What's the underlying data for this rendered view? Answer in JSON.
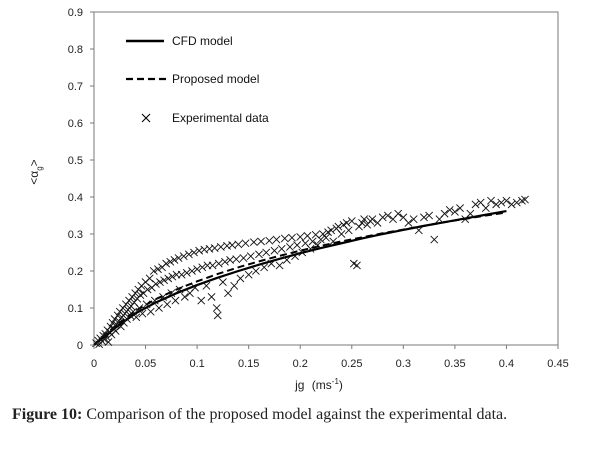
{
  "caption": {
    "label": "Figure 10:",
    "text": "Comparison of the proposed model against the experimental data."
  },
  "chart_data": {
    "type": "scatter",
    "xlabel_main": "jg",
    "xlabel_unit_pre": "(ms",
    "xlabel_unit_sup": "-1",
    "xlabel_unit_post": ")",
    "ylabel_main": "<α",
    "ylabel_sub": "g",
    "ylabel_close": ">",
    "xlim": [
      0,
      0.45
    ],
    "ylim": [
      0,
      0.9
    ],
    "xticks": [
      "0",
      "0.05",
      "0.1",
      "0.15",
      "0.2",
      "0.25",
      "0.3",
      "0.35",
      "0.4",
      "0.45"
    ],
    "yticks": [
      "0",
      "0.1",
      "0.2",
      "0.3",
      "0.4",
      "0.5",
      "0.6",
      "0.7",
      "0.8",
      "0.9"
    ],
    "legend": [
      "CFD model",
      "Proposed model",
      "Experimental data"
    ],
    "legend_position": "top-left",
    "grid": false,
    "series": [
      {
        "name": "CFD model",
        "style": "solid",
        "x": [
          0,
          0.02,
          0.04,
          0.06,
          0.08,
          0.1,
          0.12,
          0.14,
          0.16,
          0.18,
          0.2,
          0.22,
          0.24,
          0.26,
          0.28,
          0.3,
          0.32,
          0.34,
          0.36,
          0.38,
          0.4
        ],
        "y": [
          0,
          0.045,
          0.085,
          0.115,
          0.14,
          0.162,
          0.182,
          0.2,
          0.217,
          0.233,
          0.248,
          0.262,
          0.275,
          0.288,
          0.3,
          0.311,
          0.322,
          0.332,
          0.342,
          0.352,
          0.362
        ]
      },
      {
        "name": "Proposed model",
        "style": "dashed",
        "x": [
          0,
          0.02,
          0.04,
          0.06,
          0.08,
          0.1,
          0.12,
          0.14,
          0.16,
          0.18,
          0.2,
          0.22,
          0.24,
          0.26,
          0.28,
          0.3,
          0.32,
          0.34,
          0.36,
          0.38,
          0.4
        ],
        "y": [
          0,
          0.05,
          0.092,
          0.124,
          0.15,
          0.172,
          0.192,
          0.21,
          0.226,
          0.241,
          0.255,
          0.268,
          0.28,
          0.291,
          0.302,
          0.312,
          0.322,
          0.332,
          0.341,
          0.35,
          0.358
        ]
      },
      {
        "name": "Experimental data",
        "style": "markers",
        "points": [
          [
            0.002,
            0.005
          ],
          [
            0.004,
            0.012
          ],
          [
            0.005,
            0.002
          ],
          [
            0.006,
            0.018
          ],
          [
            0.008,
            0.01
          ],
          [
            0.009,
            0.025
          ],
          [
            0.01,
            0.015
          ],
          [
            0.011,
            0.03
          ],
          [
            0.012,
            0.022
          ],
          [
            0.013,
            0.04
          ],
          [
            0.014,
            0.008
          ],
          [
            0.015,
            0.035
          ],
          [
            0.016,
            0.05
          ],
          [
            0.017,
            0.028
          ],
          [
            0.018,
            0.06
          ],
          [
            0.019,
            0.045
          ],
          [
            0.02,
            0.07
          ],
          [
            0.021,
            0.038
          ],
          [
            0.022,
            0.055
          ],
          [
            0.023,
            0.08
          ],
          [
            0.024,
            0.065
          ],
          [
            0.025,
            0.09
          ],
          [
            0.026,
            0.05
          ],
          [
            0.027,
            0.075
          ],
          [
            0.028,
            0.1
          ],
          [
            0.029,
            0.06
          ],
          [
            0.03,
            0.085
          ],
          [
            0.031,
            0.11
          ],
          [
            0.032,
            0.07
          ],
          [
            0.033,
            0.095
          ],
          [
            0.034,
            0.12
          ],
          [
            0.035,
            0.08
          ],
          [
            0.036,
            0.105
          ],
          [
            0.037,
            0.13
          ],
          [
            0.038,
            0.09
          ],
          [
            0.039,
            0.115
          ],
          [
            0.04,
            0.14
          ],
          [
            0.041,
            0.075
          ],
          [
            0.042,
            0.125
          ],
          [
            0.043,
            0.15
          ],
          [
            0.044,
            0.1
          ],
          [
            0.045,
            0.135
          ],
          [
            0.046,
            0.16
          ],
          [
            0.047,
            0.085
          ],
          [
            0.048,
            0.14
          ],
          [
            0.05,
            0.17
          ],
          [
            0.051,
            0.11
          ],
          [
            0.052,
            0.15
          ],
          [
            0.054,
            0.18
          ],
          [
            0.055,
            0.09
          ],
          [
            0.056,
            0.155
          ],
          [
            0.058,
            0.2
          ],
          [
            0.059,
            0.12
          ],
          [
            0.06,
            0.165
          ],
          [
            0.062,
            0.205
          ],
          [
            0.063,
            0.1
          ],
          [
            0.064,
            0.17
          ],
          [
            0.066,
            0.21
          ],
          [
            0.067,
            0.13
          ],
          [
            0.068,
            0.175
          ],
          [
            0.07,
            0.22
          ],
          [
            0.071,
            0.11
          ],
          [
            0.072,
            0.18
          ],
          [
            0.074,
            0.225
          ],
          [
            0.075,
            0.14
          ],
          [
            0.076,
            0.185
          ],
          [
            0.078,
            0.23
          ],
          [
            0.079,
            0.12
          ],
          [
            0.08,
            0.19
          ],
          [
            0.082,
            0.235
          ],
          [
            0.083,
            0.15
          ],
          [
            0.085,
            0.19
          ],
          [
            0.087,
            0.24
          ],
          [
            0.088,
            0.13
          ],
          [
            0.09,
            0.195
          ],
          [
            0.092,
            0.245
          ],
          [
            0.093,
            0.14
          ],
          [
            0.095,
            0.2
          ],
          [
            0.097,
            0.25
          ],
          [
            0.098,
            0.155
          ],
          [
            0.1,
            0.205
          ],
          [
            0.102,
            0.255
          ],
          [
            0.104,
            0.12
          ],
          [
            0.105,
            0.21
          ],
          [
            0.107,
            0.258
          ],
          [
            0.109,
            0.16
          ],
          [
            0.11,
            0.215
          ],
          [
            0.112,
            0.26
          ],
          [
            0.114,
            0.13
          ],
          [
            0.115,
            0.215
          ],
          [
            0.117,
            0.262
          ],
          [
            0.119,
            0.1
          ],
          [
            0.12,
            0.08
          ],
          [
            0.121,
            0.22
          ],
          [
            0.123,
            0.265
          ],
          [
            0.125,
            0.17
          ],
          [
            0.127,
            0.225
          ],
          [
            0.129,
            0.268
          ],
          [
            0.13,
            0.14
          ],
          [
            0.132,
            0.23
          ],
          [
            0.134,
            0.27
          ],
          [
            0.136,
            0.16
          ],
          [
            0.138,
            0.232
          ],
          [
            0.14,
            0.272
          ],
          [
            0.142,
            0.18
          ],
          [
            0.145,
            0.235
          ],
          [
            0.147,
            0.275
          ],
          [
            0.15,
            0.19
          ],
          [
            0.152,
            0.24
          ],
          [
            0.155,
            0.278
          ],
          [
            0.157,
            0.2
          ],
          [
            0.16,
            0.245
          ],
          [
            0.162,
            0.28
          ],
          [
            0.165,
            0.21
          ],
          [
            0.167,
            0.25
          ],
          [
            0.17,
            0.282
          ],
          [
            0.172,
            0.22
          ],
          [
            0.175,
            0.255
          ],
          [
            0.177,
            0.285
          ],
          [
            0.18,
            0.215
          ],
          [
            0.182,
            0.26
          ],
          [
            0.185,
            0.288
          ],
          [
            0.187,
            0.23
          ],
          [
            0.19,
            0.265
          ],
          [
            0.192,
            0.29
          ],
          [
            0.195,
            0.24
          ],
          [
            0.197,
            0.27
          ],
          [
            0.2,
            0.292
          ],
          [
            0.202,
            0.25
          ],
          [
            0.205,
            0.275
          ],
          [
            0.207,
            0.295
          ],
          [
            0.21,
            0.26
          ],
          [
            0.212,
            0.28
          ],
          [
            0.215,
            0.298
          ],
          [
            0.217,
            0.27
          ],
          [
            0.22,
            0.285
          ],
          [
            0.222,
            0.3
          ],
          [
            0.225,
            0.29
          ],
          [
            0.227,
            0.305
          ],
          [
            0.23,
            0.31
          ],
          [
            0.232,
            0.28
          ],
          [
            0.235,
            0.315
          ],
          [
            0.237,
            0.32
          ],
          [
            0.24,
            0.3
          ],
          [
            0.242,
            0.325
          ],
          [
            0.245,
            0.33
          ],
          [
            0.247,
            0.31
          ],
          [
            0.25,
            0.335
          ],
          [
            0.252,
            0.22
          ],
          [
            0.255,
            0.215
          ],
          [
            0.257,
            0.32
          ],
          [
            0.26,
            0.33
          ],
          [
            0.262,
            0.34
          ],
          [
            0.265,
            0.325
          ],
          [
            0.268,
            0.335
          ],
          [
            0.27,
            0.34
          ],
          [
            0.275,
            0.33
          ],
          [
            0.28,
            0.345
          ],
          [
            0.285,
            0.35
          ],
          [
            0.29,
            0.34
          ],
          [
            0.295,
            0.355
          ],
          [
            0.3,
            0.345
          ],
          [
            0.305,
            0.33
          ],
          [
            0.31,
            0.34
          ],
          [
            0.315,
            0.31
          ],
          [
            0.32,
            0.345
          ],
          [
            0.325,
            0.35
          ],
          [
            0.33,
            0.285
          ],
          [
            0.335,
            0.34
          ],
          [
            0.34,
            0.355
          ],
          [
            0.345,
            0.365
          ],
          [
            0.35,
            0.36
          ],
          [
            0.355,
            0.37
          ],
          [
            0.36,
            0.34
          ],
          [
            0.365,
            0.355
          ],
          [
            0.37,
            0.38
          ],
          [
            0.375,
            0.385
          ],
          [
            0.38,
            0.37
          ],
          [
            0.385,
            0.39
          ],
          [
            0.39,
            0.38
          ],
          [
            0.395,
            0.385
          ],
          [
            0.4,
            0.39
          ],
          [
            0.405,
            0.38
          ],
          [
            0.41,
            0.385
          ],
          [
            0.415,
            0.39
          ],
          [
            0.418,
            0.393
          ]
        ]
      }
    ]
  }
}
